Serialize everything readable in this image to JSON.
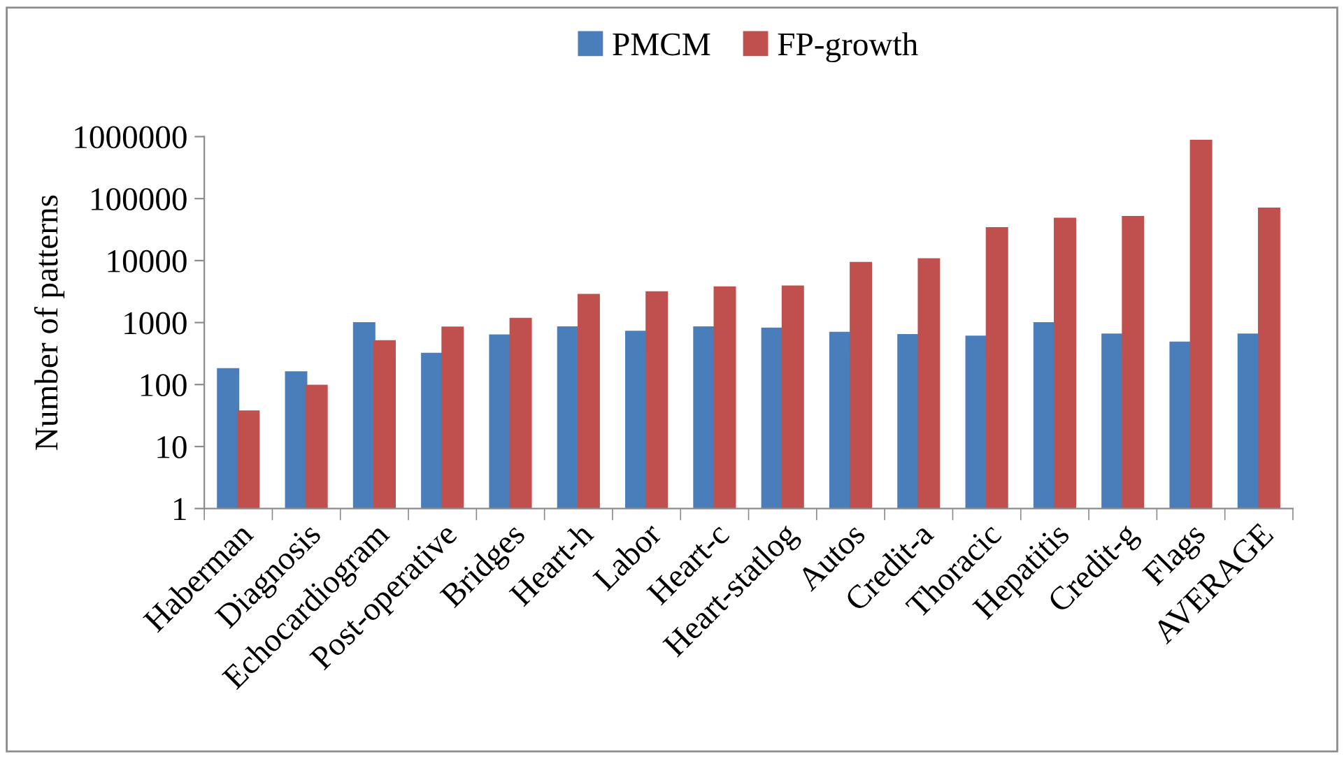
{
  "chart_data": {
    "type": "bar",
    "ylabel": "Number of patterns",
    "categories": [
      "Haberman",
      "Diagnosis",
      "Echocardiogram",
      "Post-operative",
      "Bridges",
      "Heart-h",
      "Labor",
      "Heart-c",
      "Heart-statlog",
      "Autos",
      "Credit-a",
      "Thoracic",
      "Hepatitis",
      "Credit-g",
      "Flags",
      "AVERAGE"
    ],
    "series": [
      {
        "name": "PMCM",
        "color": "#4a7ebb",
        "values": [
          178,
          158,
          980,
          315,
          620,
          840,
          710,
          840,
          800,
          685,
          630,
          595,
          980,
          640,
          477,
          640
        ]
      },
      {
        "name": "FP-growth",
        "color": "#c0504d",
        "values": [
          37,
          96,
          500,
          830,
          1150,
          2800,
          3080,
          3700,
          3820,
          9200,
          10500,
          33500,
          47400,
          50700,
          856000,
          69000
        ]
      }
    ],
    "log": true,
    "ylim": [
      1,
      1000000
    ],
    "yticks": [
      1,
      10,
      100,
      1000,
      10000,
      100000,
      1000000
    ],
    "grid": false,
    "legend": "top"
  }
}
